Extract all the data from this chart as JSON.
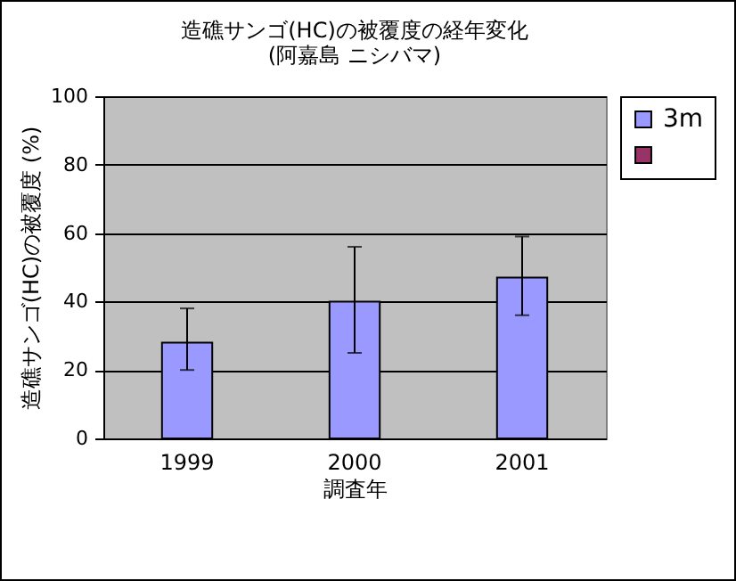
{
  "chart_data": {
    "type": "bar",
    "title": "造礁サンゴ(HC)の被覆度の経年変化",
    "subtitle": "(阿嘉島 ニシバマ)",
    "xlabel": "調査年",
    "ylabel": "造礁サンゴ(HC)の被覆度 (%)",
    "categories": [
      "1999",
      "2000",
      "2001"
    ],
    "series": [
      {
        "name": "3m",
        "color": "#9999ff",
        "values": [
          28,
          40,
          47
        ],
        "errors": [
          [
            20,
            38
          ],
          [
            25,
            56
          ],
          [
            36,
            59
          ]
        ]
      },
      {
        "color": "#993366",
        "values": [
          null,
          null,
          null
        ]
      }
    ],
    "ylim": [
      0,
      100
    ],
    "yticks": [
      0,
      20,
      40,
      60,
      80,
      100
    ],
    "grid": "y",
    "legend": "right"
  }
}
